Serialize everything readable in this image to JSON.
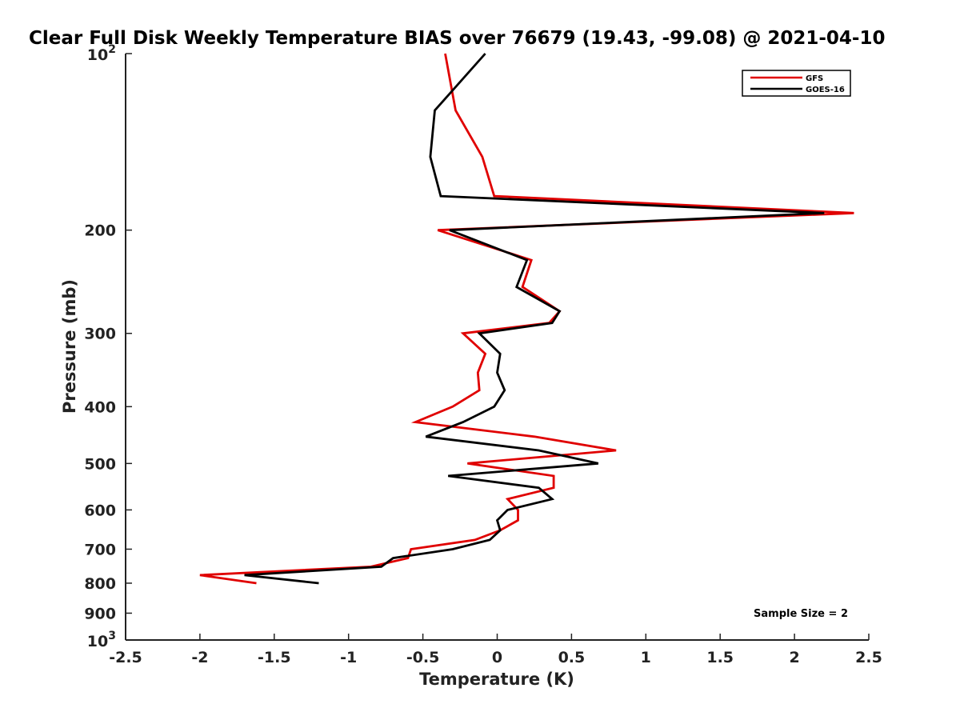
{
  "chart_data": {
    "type": "line",
    "title": "Clear Full Disk Weekly Temperature BIAS over 76679 (19.43, -99.08) @ 2021-04-10",
    "xlabel": "Temperature (K)",
    "ylabel": "Pressure (mb)",
    "xlim": [
      -2.5,
      2.5
    ],
    "ylim": [
      100,
      1000
    ],
    "y_scale": "log",
    "y_reversed": true,
    "grid": false,
    "x_ticks": [
      -2.5,
      -2,
      -1.5,
      -1,
      -0.5,
      0,
      0.5,
      1,
      1.5,
      2,
      2.5
    ],
    "x_tick_labels": [
      "-2.5",
      "-2",
      "-1.5",
      "-1",
      "-0.5",
      "0",
      "0.5",
      "1",
      "1.5",
      "2",
      "2.5"
    ],
    "y_ticks": [
      200,
      300,
      400,
      500,
      600,
      700,
      800,
      900
    ],
    "y_tick_labels": [
      "200",
      "300",
      "400",
      "500",
      "600",
      "700",
      "800",
      "900"
    ],
    "y_tick_top_base": "10",
    "y_tick_top_exp": "2",
    "y_tick_bottom_base": "10",
    "y_tick_bottom_exp": "3",
    "legend_position": "top-right",
    "annotation": "Sample Size = 2",
    "series": [
      {
        "name": "GFS",
        "color": "#e00000",
        "points": [
          [
            -0.35,
            100
          ],
          [
            -0.28,
            125
          ],
          [
            -0.1,
            150
          ],
          [
            -0.02,
            175
          ],
          [
            2.4,
            187
          ],
          [
            -0.4,
            200
          ],
          [
            0.23,
            225
          ],
          [
            0.17,
            250
          ],
          [
            0.42,
            275
          ],
          [
            0.35,
            288
          ],
          [
            -0.23,
            300
          ],
          [
            -0.08,
            325
          ],
          [
            -0.13,
            350
          ],
          [
            -0.12,
            375
          ],
          [
            -0.3,
            400
          ],
          [
            -0.55,
            425
          ],
          [
            0.25,
            450
          ],
          [
            0.8,
            475
          ],
          [
            -0.2,
            500
          ],
          [
            0.38,
            525
          ],
          [
            0.38,
            550
          ],
          [
            0.07,
            575
          ],
          [
            0.14,
            600
          ],
          [
            0.14,
            625
          ],
          [
            0.02,
            650
          ],
          [
            -0.15,
            675
          ],
          [
            -0.58,
            700
          ],
          [
            -0.6,
            725
          ],
          [
            -0.85,
            750
          ],
          [
            -2.0,
            775
          ],
          [
            -1.62,
            800
          ]
        ]
      },
      {
        "name": "GOES-16",
        "color": "#000000",
        "points": [
          [
            -0.08,
            100
          ],
          [
            -0.42,
            125
          ],
          [
            -0.45,
            150
          ],
          [
            -0.38,
            175
          ],
          [
            2.2,
            187
          ],
          [
            -0.32,
            200
          ],
          [
            0.2,
            225
          ],
          [
            0.13,
            250
          ],
          [
            0.42,
            275
          ],
          [
            0.37,
            288
          ],
          [
            -0.12,
            300
          ],
          [
            0.02,
            325
          ],
          [
            0.0,
            350
          ],
          [
            0.05,
            375
          ],
          [
            -0.02,
            400
          ],
          [
            -0.23,
            425
          ],
          [
            -0.48,
            450
          ],
          [
            0.28,
            475
          ],
          [
            0.68,
            500
          ],
          [
            -0.33,
            525
          ],
          [
            0.28,
            550
          ],
          [
            0.37,
            575
          ],
          [
            0.07,
            600
          ],
          [
            0.0,
            625
          ],
          [
            0.02,
            650
          ],
          [
            -0.05,
            675
          ],
          [
            -0.3,
            700
          ],
          [
            -0.7,
            725
          ],
          [
            -0.78,
            750
          ],
          [
            -1.7,
            775
          ],
          [
            -1.2,
            800
          ]
        ]
      }
    ]
  }
}
